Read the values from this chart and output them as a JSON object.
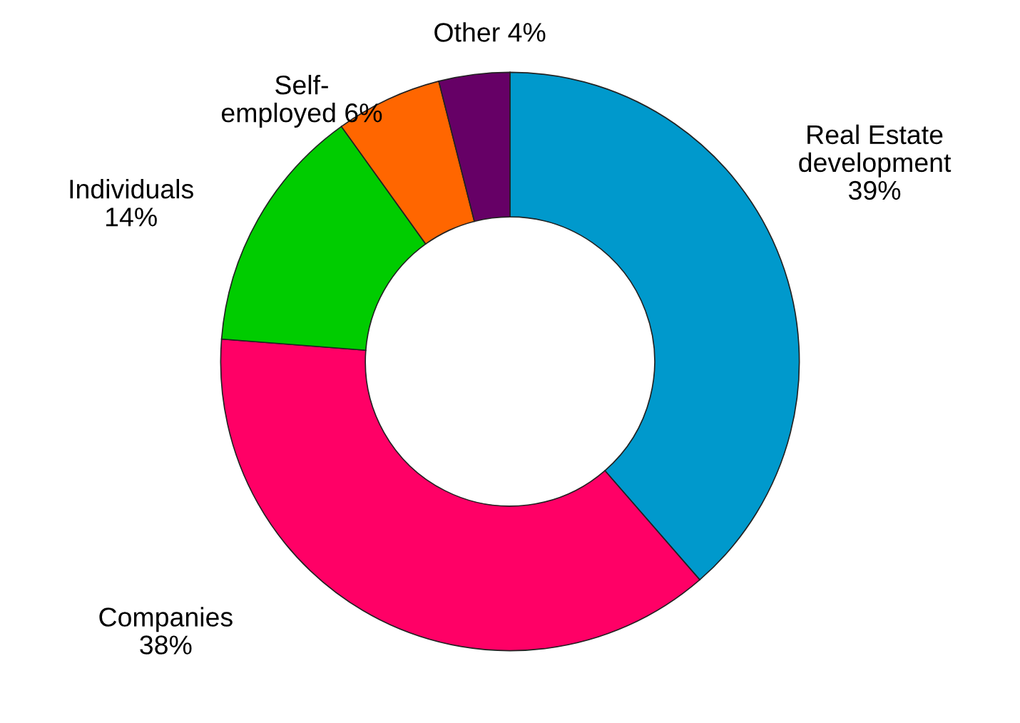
{
  "chart_data": {
    "type": "donut",
    "categories": [
      "Real Estate\ndevelopment",
      "Companies",
      "Individuals",
      "Self-\nemployed",
      "Other"
    ],
    "values": [
      39,
      38,
      14,
      6,
      4
    ],
    "colors": [
      "#0099cc",
      "#ff0066",
      "#00cc00",
      "#ff6600",
      "#660066"
    ],
    "value_labels": [
      "39%",
      "38%",
      "14%",
      "6%",
      "4%"
    ],
    "legend": false
  }
}
